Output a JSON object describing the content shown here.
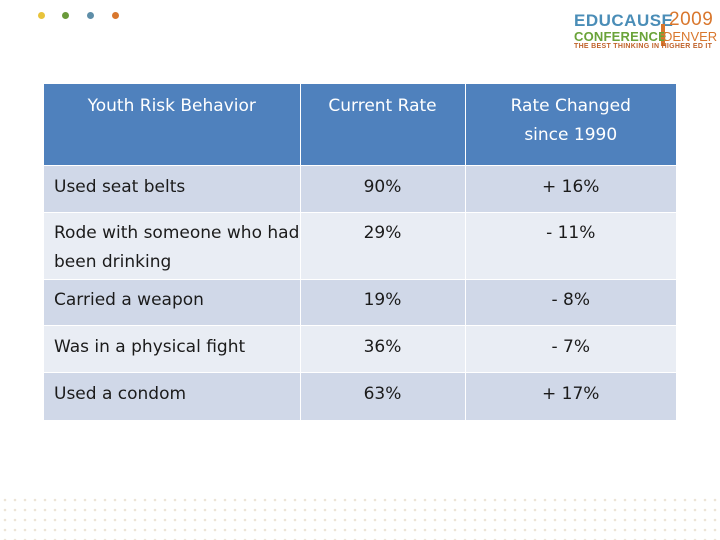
{
  "colors": {
    "header_bg": "#4f81bd",
    "row_odd": "#d0d8e8",
    "row_even": "#e9edf4",
    "dot_yellow": "#e8c33a",
    "dot_green": "#6a9a3a",
    "dot_blue": "#5e8ea8",
    "dot_orange": "#d9772d"
  },
  "logo": {
    "brand": "EDUCAUSE",
    "year": "2009",
    "conference": "CONFERENCE",
    "city": "DENVER",
    "tagline": "THE BEST THINKING IN HIGHER ED IT"
  },
  "table": {
    "headers": [
      "Youth Risk Behavior",
      "Current Rate",
      "Rate Changed since 1990"
    ],
    "rows": [
      {
        "behavior": "Used seat belts",
        "current": "90%",
        "change": "+ 16%"
      },
      {
        "behavior": "Rode with someone who had been drinking",
        "current": "29%",
        "change": "- 11%"
      },
      {
        "behavior": "Carried a weapon",
        "current": "19%",
        "change": "- 8%"
      },
      {
        "behavior": "Was in a physical fight",
        "current": "36%",
        "change": "- 7%"
      },
      {
        "behavior": "Used a condom",
        "current": "63%",
        "change": "+ 17%"
      }
    ]
  }
}
